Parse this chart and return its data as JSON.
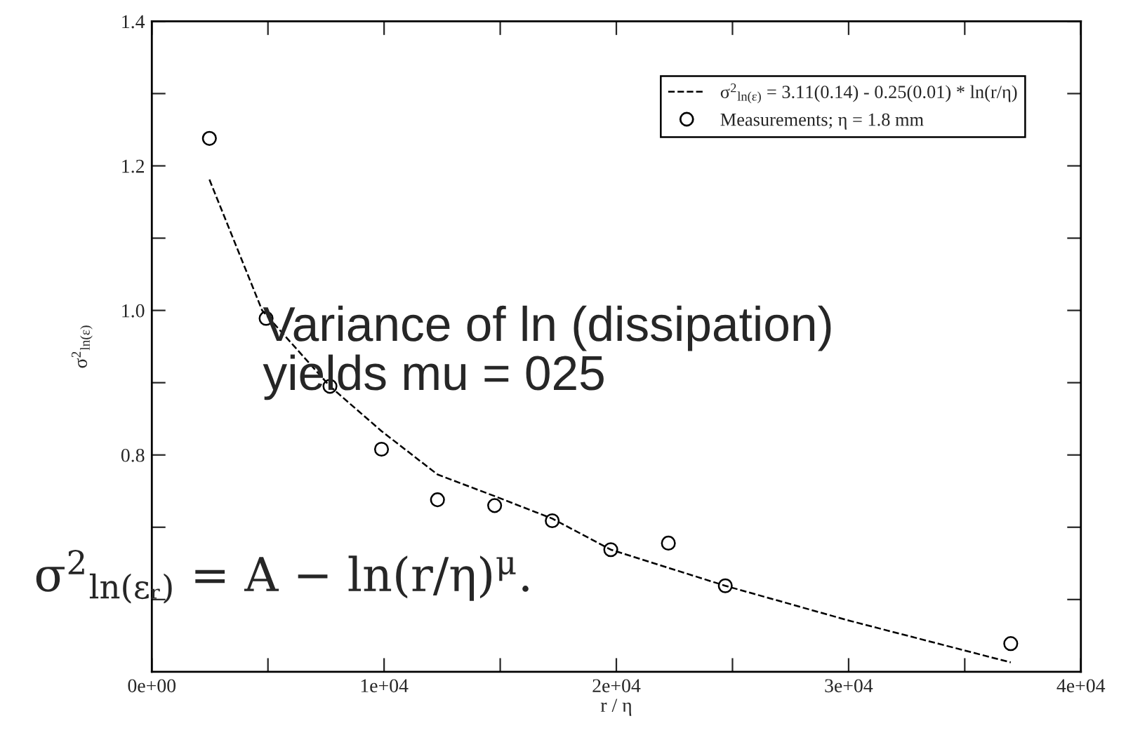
{
  "chart_data": {
    "type": "scatter",
    "xlabel": "r / η",
    "ylabel": "σ$^{2}$$_{ln(ε)}$",
    "series": [
      {
        "name": "σ$^{2}$$_{ln(ε)}$ = 3.11(0.14) - 0.25(0.01) * ln(r/η)",
        "type": "line",
        "line_style": "dashed",
        "marker": "none",
        "color": "#000000",
        "x": [
          2480,
          4750,
          7670,
          9890,
          12300,
          14760,
          17240,
          19760,
          24690,
          30000,
          36980
        ],
        "values": [
          1.181,
          1.0,
          0.895,
          0.833,
          0.773,
          0.743,
          0.712,
          0.669,
          0.619,
          0.571,
          0.513
        ]
      },
      {
        "name": "Measurements; η = 1.8 mm",
        "type": "scatter",
        "marker": "circle",
        "color": "#000000",
        "x": [
          2480,
          4920,
          7670,
          9890,
          12300,
          14760,
          17240,
          19760,
          22240,
          24690,
          36980
        ],
        "values": [
          1.238,
          0.989,
          0.895,
          0.808,
          0.738,
          0.73,
          0.709,
          0.669,
          0.678,
          0.619,
          0.539
        ]
      }
    ],
    "xlim": [
      0,
      40000
    ],
    "ylim": [
      0.5,
      1.4
    ],
    "xticks": [
      {
        "value": 0,
        "label": "0e+00"
      },
      {
        "value": 5000,
        "label": null
      },
      {
        "value": 10000,
        "label": "1e+04"
      },
      {
        "value": 15000,
        "label": null
      },
      {
        "value": 20000,
        "label": "2e+04"
      },
      {
        "value": 25000,
        "label": null
      },
      {
        "value": 30000,
        "label": "3e+04"
      },
      {
        "value": 35000,
        "label": null
      },
      {
        "value": 40000,
        "label": "4e+04"
      }
    ],
    "yticks": [
      {
        "value": 0.6,
        "label": null
      },
      {
        "value": 0.7,
        "label": null
      },
      0.8,
      {
        "value": 0.9,
        "label": null
      },
      {
        "value": 1.0,
        "label": "1.0"
      },
      {
        "value": 1.1,
        "label": null
      },
      1.2,
      {
        "value": 1.3,
        "label": null
      },
      1.4
    ],
    "grid": false,
    "legend": "top right",
    "annotations": [
      "Variance of ln (dissipation)\nyields mu = 025",
      "σ$^{2}$$_{ln(εᵣ)}$ = A − ln(r/η)$^{μ}$."
    ]
  }
}
